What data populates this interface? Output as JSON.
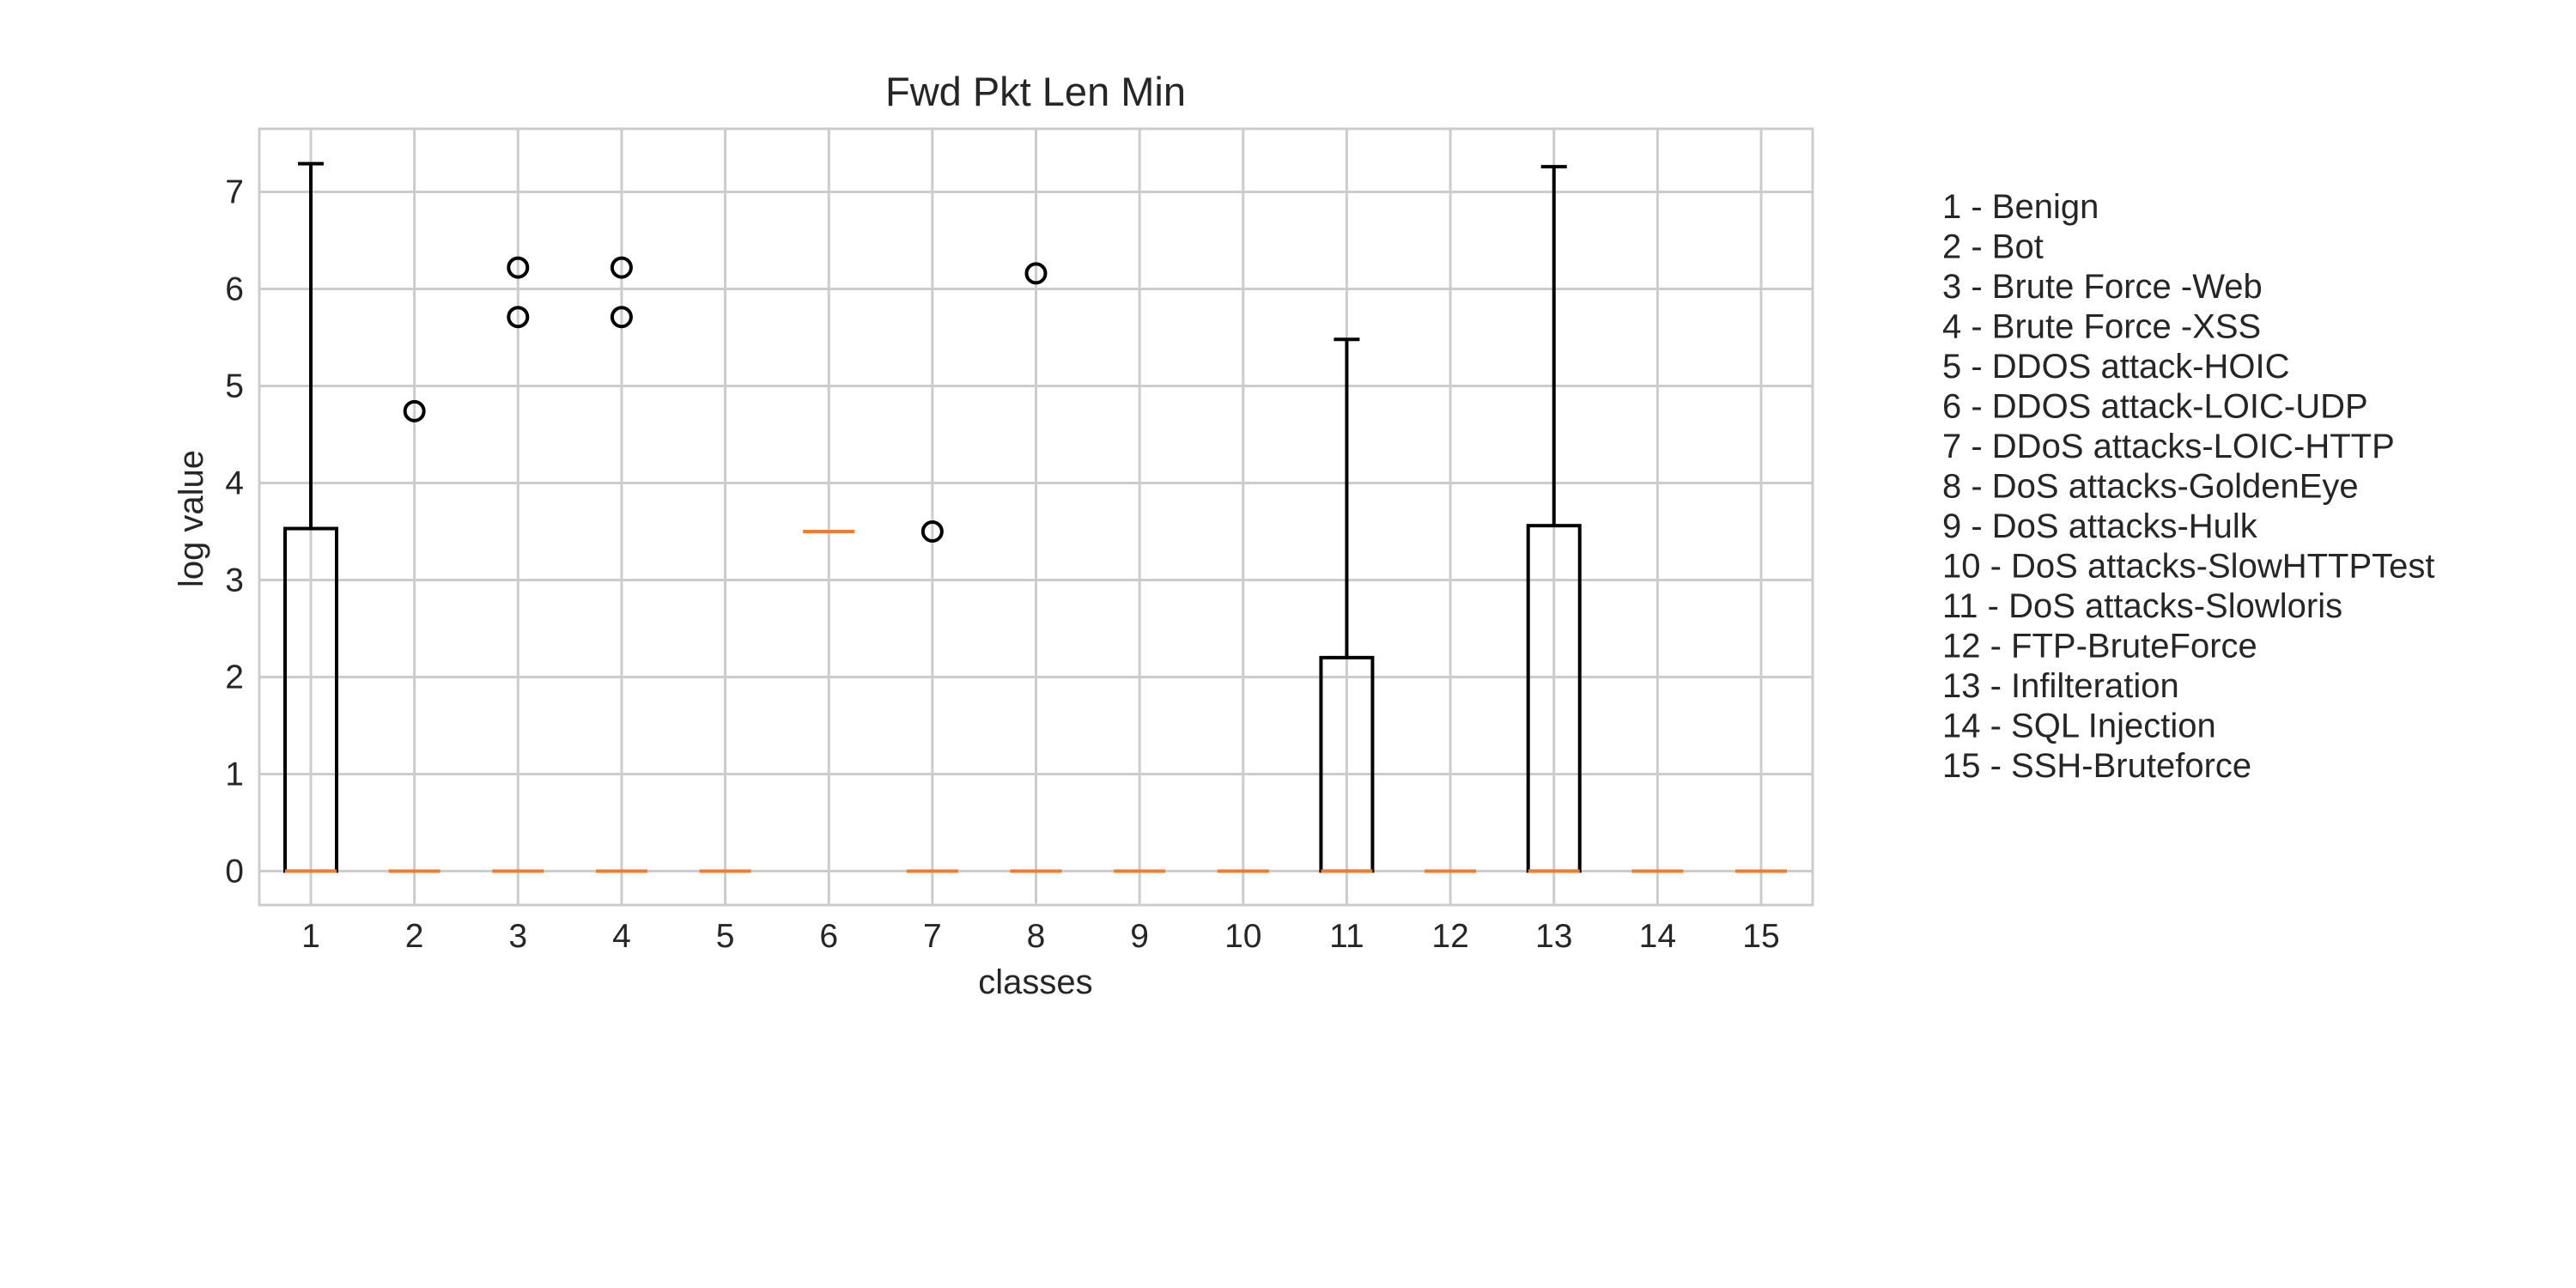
{
  "chart_data": {
    "type": "box",
    "title": "Fwd Pkt Len Min",
    "xlabel": "classes",
    "ylabel": "log value",
    "categories": [
      "1",
      "2",
      "3",
      "4",
      "5",
      "6",
      "7",
      "8",
      "9",
      "10",
      "11",
      "12",
      "13",
      "14",
      "15"
    ],
    "ylim": [
      -0.35,
      7.65
    ],
    "yticks": [
      0,
      1,
      2,
      3,
      4,
      5,
      6,
      7
    ],
    "grid": true,
    "boxes": [
      {
        "class": "1",
        "min": 0,
        "q1": 0,
        "median": 0,
        "q3": 3.53,
        "max": 7.29,
        "outliers": []
      },
      {
        "class": "2",
        "min": 0,
        "q1": 0,
        "median": 0,
        "q3": 0,
        "max": 0,
        "outliers": [
          4.74
        ]
      },
      {
        "class": "3",
        "min": 0,
        "q1": 0,
        "median": 0,
        "q3": 0,
        "max": 0,
        "outliers": [
          6.22,
          5.71
        ]
      },
      {
        "class": "4",
        "min": 0,
        "q1": 0,
        "median": 0,
        "q3": 0,
        "max": 0,
        "outliers": [
          6.22,
          5.71
        ]
      },
      {
        "class": "5",
        "min": 0,
        "q1": 0,
        "median": 0,
        "q3": 0,
        "max": 0,
        "outliers": []
      },
      {
        "class": "6",
        "min": 3.5,
        "q1": 3.5,
        "median": 3.5,
        "q3": 3.5,
        "max": 3.5,
        "outliers": []
      },
      {
        "class": "7",
        "min": 0,
        "q1": 0,
        "median": 0,
        "q3": 0,
        "max": 0,
        "outliers": [
          3.5
        ]
      },
      {
        "class": "8",
        "min": 0,
        "q1": 0,
        "median": 0,
        "q3": 0,
        "max": 0,
        "outliers": [
          6.16
        ]
      },
      {
        "class": "9",
        "min": 0,
        "q1": 0,
        "median": 0,
        "q3": 0,
        "max": 0,
        "outliers": []
      },
      {
        "class": "10",
        "min": 0,
        "q1": 0,
        "median": 0,
        "q3": 0,
        "max": 0,
        "outliers": []
      },
      {
        "class": "11",
        "min": 0,
        "q1": 0,
        "median": 0,
        "q3": 2.2,
        "max": 5.48,
        "outliers": []
      },
      {
        "class": "12",
        "min": 0,
        "q1": 0,
        "median": 0,
        "q3": 0,
        "max": 0,
        "outliers": []
      },
      {
        "class": "13",
        "min": 0,
        "q1": 0,
        "median": 0,
        "q3": 3.56,
        "max": 7.26,
        "outliers": []
      },
      {
        "class": "14",
        "min": 0,
        "q1": 0,
        "median": 0,
        "q3": 0,
        "max": 0,
        "outliers": []
      },
      {
        "class": "15",
        "min": 0,
        "q1": 0,
        "median": 0,
        "q3": 0,
        "max": 0,
        "outliers": []
      }
    ],
    "legend_placement": "right",
    "legend": [
      "1 - Benign",
      "2 - Bot",
      "3 - Brute Force -Web",
      "4 - Brute Force -XSS",
      "5 - DDOS attack-HOIC",
      "6 - DDOS attack-LOIC-UDP",
      "7 - DDoS attacks-LOIC-HTTP",
      "8 - DoS attacks-GoldenEye",
      "9 - DoS attacks-Hulk",
      "10 - DoS attacks-SlowHTTPTest",
      "11 - DoS attacks-Slowloris",
      "12 - FTP-BruteForce",
      "13 - Infilteration",
      "14 - SQL Injection",
      "15 - SSH-Bruteforce"
    ],
    "colors": {
      "box": "#000000",
      "median": "#ed7d31",
      "grid": "#cccccc",
      "frame": "#cccccc"
    }
  }
}
